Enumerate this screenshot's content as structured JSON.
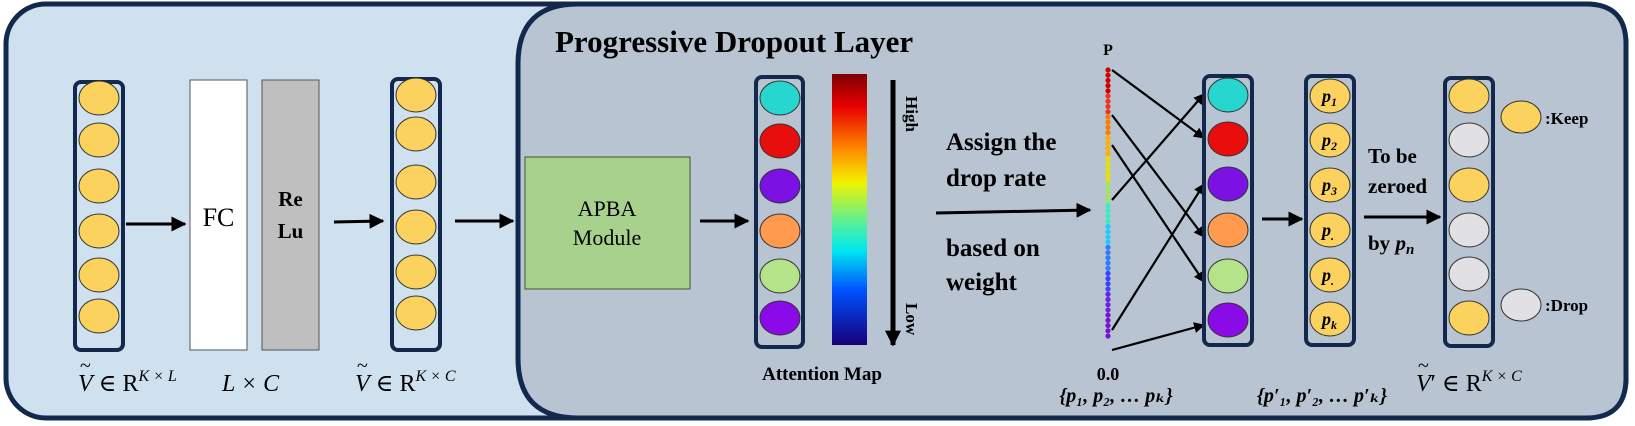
{
  "labels": {
    "title": "Progressive Dropout Layer",
    "fc": "FC",
    "relu_line1": "Re",
    "relu_line2": "Lu",
    "apba_line1": "APBA",
    "apba_line2": "Module",
    "attention_map": "Attention Map",
    "high": "High",
    "low": "Low",
    "assign_line1": "Assign the",
    "assign_line2": "drop rate",
    "based_line1": "based on",
    "based_line2": "weight",
    "p_top": "P",
    "p_zero": "0.0",
    "to_be_line1": "To be",
    "to_be_line2": "zeroed",
    "by_pn_by": "by ",
    "by_pn_p": "p",
    "by_pn_n": "n",
    "keep": ":Keep",
    "drop": ":Drop"
  },
  "formulas": {
    "v_kl": {
      "v": "V",
      "rest": "  ∈  R",
      "sup": "K × L"
    },
    "l_c": "L  × C",
    "v_kc": {
      "v": "V",
      "rest": " ∈  R",
      "sup": "K × C"
    },
    "v_prime": {
      "v": "V",
      "prime": "′",
      "rest": "  ∈  R",
      "sup": "K × C"
    },
    "p_set": "{p₁, p₂, … pₖ}",
    "p_prime_set": "{p′₁, p′₂, … p′ₖ}"
  },
  "p_labels": [
    {
      "base": "p",
      "sub": "1"
    },
    {
      "base": "p",
      "sub": "2"
    },
    {
      "base": "p",
      "sub": "3"
    },
    {
      "base": "p",
      "sub": "."
    },
    {
      "base": "p",
      "sub": "."
    },
    {
      "base": "p",
      "sub": "k"
    }
  ],
  "colors": {
    "outer_bg": "#cfe0ee",
    "inner_bg": "#b8c4d1",
    "border": "#12294d",
    "yellow": "#fbd25d",
    "gray_drop": "#e1e1e3",
    "apba_fill": "#a9d18e",
    "relu_fill": "#bfbfbf"
  },
  "attention_colors": [
    "#28d6d0",
    "#e80e0e",
    "#7b11e3",
    "#ff9a4e",
    "#b5e38a",
    "#8b0ae8"
  ],
  "output_pattern": [
    "keep",
    "drop",
    "keep",
    "drop",
    "drop",
    "keep"
  ]
}
